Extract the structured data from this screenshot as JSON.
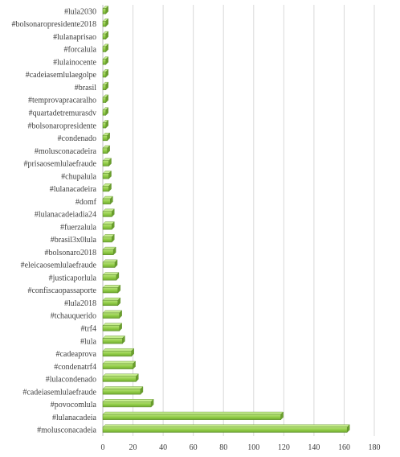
{
  "chart_data": {
    "type": "bar",
    "orientation": "horizontal",
    "title": "",
    "xlabel": "",
    "ylabel": "",
    "xlim": [
      0,
      180
    ],
    "x_ticks": [
      0,
      20,
      40,
      60,
      80,
      100,
      120,
      140,
      160,
      180
    ],
    "grid": "vertical",
    "legend": "none",
    "colors": {
      "bar": "#92d050",
      "bar_edge": "#5a8a2a",
      "grid": "#d9d9d9",
      "axis": "#bfbfbf"
    },
    "categories": [
      "#molusconacadeia",
      "#lulanacadeia",
      "#povocomlula",
      "#cadeiasemlulaefraude",
      "#lulacondenado",
      "#condenatrf4",
      "#cadeaprova",
      "#lula",
      "#trf4",
      "#tchauquerido",
      "#lula2018",
      "#confiscaopassaporte",
      "#justicaporlula",
      "#eleicaosemlulaefraude",
      "#bolsonaro2018",
      "#brasil3x0lula",
      "#fuerzalula",
      "#lulanacadeiadia24",
      "#domf",
      "#lulanacadeira",
      "#chupalula",
      "#prisaosemlulaefraude",
      "#molusconacadeira",
      "#condenado",
      "#bolsonaropresidente",
      "#quartadetremurasdv",
      "#temprovapracaralho",
      "#brasil",
      "#cadeiasemlulaegolpe",
      "#lulainocente",
      "#forcalula",
      "#lulanaprisao",
      "#bolsonaropresidente2018",
      "#lula2030"
    ],
    "values": [
      162,
      118,
      32,
      25,
      22,
      20,
      19,
      13,
      11,
      11,
      10,
      10,
      9,
      8,
      7,
      6,
      6,
      6,
      5,
      4,
      4,
      4,
      3,
      3,
      2,
      2,
      2,
      2,
      2,
      2,
      2,
      2,
      2,
      2
    ]
  }
}
